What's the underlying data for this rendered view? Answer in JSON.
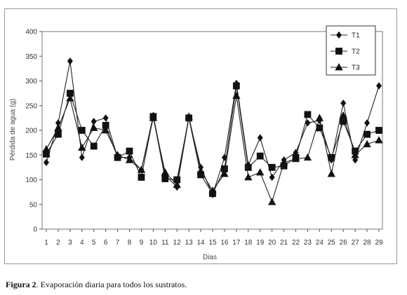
{
  "chart_data": {
    "type": "line",
    "title": "",
    "xlabel": "Dias",
    "ylabel": "Pérdida de agua (g)",
    "ylim": [
      0,
      400
    ],
    "yticks": [
      "0",
      "50",
      "100",
      "150",
      "200",
      "250",
      "300",
      "350",
      "400"
    ],
    "categories": [
      "1",
      "2",
      "3",
      "4",
      "5",
      "6",
      "7",
      "8",
      "9",
      "10",
      "11",
      "12",
      "13",
      "14",
      "15",
      "16",
      "17",
      "18",
      "19",
      "20",
      "21",
      "22",
      "23",
      "24",
      "25",
      "26",
      "27",
      "28",
      "29"
    ],
    "grid": false,
    "legend_position": "top-right",
    "series": [
      {
        "name": "T1",
        "marker": "diamond",
        "values": [
          135,
          215,
          340,
          145,
          218,
          225,
          145,
          145,
          120,
          230,
          110,
          85,
          225,
          125,
          70,
          145,
          295,
          130,
          185,
          105,
          140,
          155,
          215,
          220,
          140,
          255,
          140,
          215,
          290
        ]
      },
      {
        "name": "T2",
        "marker": "square",
        "values": [
          152,
          192,
          275,
          200,
          168,
          210,
          145,
          158,
          105,
          228,
          102,
          100,
          225,
          110,
          72,
          122,
          290,
          125,
          148,
          125,
          128,
          145,
          232,
          205,
          145,
          218,
          158,
          192,
          200
        ]
      },
      {
        "name": "T3",
        "marker": "triangle",
        "values": [
          162,
          205,
          265,
          165,
          205,
          200,
          150,
          140,
          120,
          225,
          115,
          90,
          228,
          118,
          78,
          112,
          270,
          105,
          115,
          55,
          135,
          142,
          145,
          225,
          112,
          230,
          150,
          172,
          180
        ]
      }
    ]
  },
  "caption": {
    "label": "Figura 2",
    "text": ". Evaporación diaria para todos los sustratos."
  }
}
